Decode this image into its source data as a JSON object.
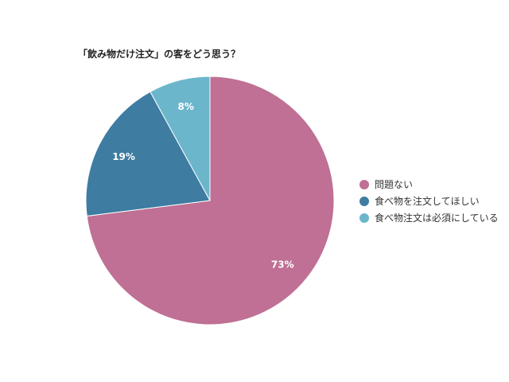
{
  "chart_data": {
    "type": "pie",
    "title": "「飲み物だけ注文」の客をどう思う？",
    "categories": [
      "問題ない",
      "食べ物を注文してほしい",
      "食べ物注文は必須にしている"
    ],
    "values": [
      73,
      19,
      8
    ],
    "labels": [
      "73%",
      "19%",
      "8%"
    ],
    "colors": [
      "#bf7094",
      "#3e7ca1",
      "#6cb6cc"
    ],
    "start": "12 o'clock",
    "direction": "clockwise",
    "legend": "right"
  }
}
